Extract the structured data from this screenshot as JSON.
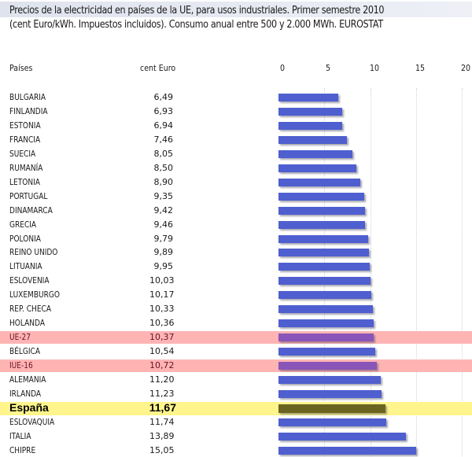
{
  "chart_data": {
    "type": "bar",
    "orientation": "horizontal",
    "title": "Precios de la electricidad en países de la UE, para usos industriales. Primer semestre 2010",
    "subtitle": "(cent Euro/kWh. Impuestos incluidos). Consumo anual entre 500 y 2.000 MWh. EUROSTAT",
    "column_headers": {
      "country": "Países",
      "value": "cent Euro"
    },
    "xlabel": "",
    "ylabel": "",
    "xlim": [
      0,
      20
    ],
    "x_ticks": [
      "0",
      "5",
      "10",
      "15",
      "20"
    ],
    "grid": true,
    "categories": [
      "BULGARIA",
      "FINLANDIA",
      "ESTONIA",
      "FRANCIA",
      "SUECIA",
      "RUMANÍA",
      "LETONIA",
      "PORTUGAL",
      "DINAMARCA",
      "GRECIA",
      "POLONIA",
      "REINO UNIDO",
      "LITUANIA",
      "ESLOVENIA",
      "LUXEMBURGO",
      "REP. CHECA",
      "HOLANDA",
      "UE-27",
      "BÉLGICA",
      "IUE-16",
      "ALEMANIA",
      "IRLANDA",
      "España",
      "ESLOVAQUIA",
      "ITALIA",
      "CHIPRE"
    ],
    "values": [
      6.49,
      6.93,
      6.94,
      7.46,
      8.05,
      8.5,
      8.9,
      9.35,
      9.42,
      9.46,
      9.79,
      9.89,
      9.95,
      10.03,
      10.17,
      10.33,
      10.36,
      10.37,
      10.54,
      10.72,
      11.2,
      11.23,
      11.67,
      11.74,
      13.89,
      15.05
    ],
    "value_labels": [
      "6,49",
      "6,93",
      "6,94",
      "7,46",
      "8,05",
      "8,50",
      "8,90",
      "9,35",
      "9,42",
      "9,46",
      "9,79",
      "9,89",
      "9,95",
      "10,03",
      "10,17",
      "10,33",
      "10,36",
      "10,37",
      "10,54",
      "10,72",
      "11,20",
      "11,23",
      "11,67",
      "11,74",
      "13,89",
      "15,05"
    ],
    "highlights": {
      "UE-27": "pink",
      "IUE-16": "pink",
      "España": "yellow"
    },
    "colors": {
      "bar": "#4f5fcf",
      "bar_highlight_pink": "#8a55b8",
      "bar_highlight_yellow": "#6b6420",
      "row_highlight_pink": "#ffb4b4",
      "row_highlight_yellow": "#fff58c",
      "title_band": "#e3e7f0"
    }
  }
}
